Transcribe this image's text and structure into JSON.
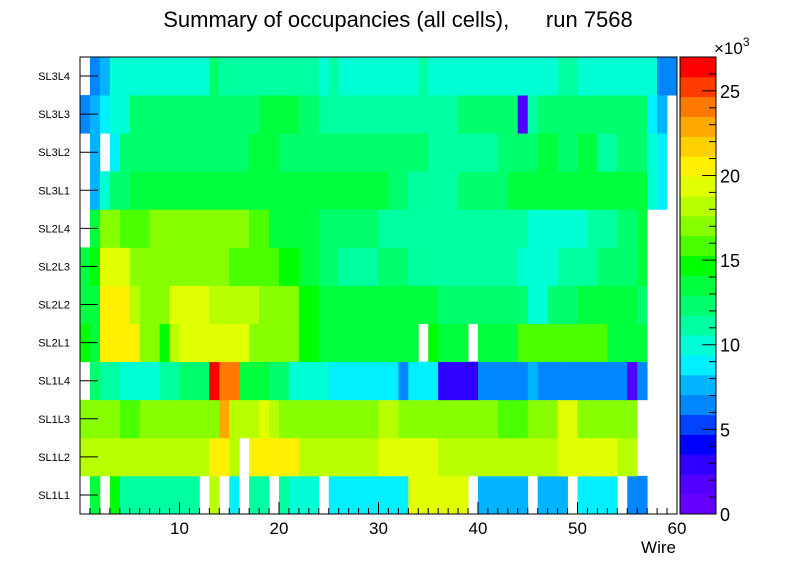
{
  "chart_data": {
    "type": "heatmap",
    "title": "Summary of occupancies (all cells),      run 7568",
    "xlabel": "Wire",
    "ylabel": "",
    "xlim": [
      0,
      60
    ],
    "x_ticks": [
      10,
      20,
      30,
      40,
      50,
      60
    ],
    "layers": [
      "SL1L1",
      "SL1L2",
      "SL1L3",
      "SL1L4",
      "SL2L1",
      "SL2L2",
      "SL2L3",
      "SL2L4",
      "SL3L1",
      "SL3L2",
      "SL3L3",
      "SL3L4"
    ],
    "colorbar": {
      "min": 0,
      "max": 27,
      "multiplier_label": "×10",
      "exponent": "3",
      "ticks": [
        0,
        5,
        10,
        15,
        20,
        25
      ],
      "palette": [
        "#6600ff",
        "#5200ff",
        "#2f00ff",
        "#0000ff",
        "#0042ff",
        "#0087ff",
        "#00b4ff",
        "#00f0ff",
        "#00ffd5",
        "#00ffa0",
        "#00ff6d",
        "#00ff3c",
        "#00ff00",
        "#49ff00",
        "#88ff00",
        "#b8ff00",
        "#e2ff00",
        "#ffef00",
        "#ffd000",
        "#ffa900",
        "#ff7800",
        "#ff3c00",
        "#ff0000"
      ]
    },
    "series": [
      {
        "name": "SL1L1",
        "segments": [
          [
            1,
            2,
            14
          ],
          [
            3,
            4,
            15
          ],
          [
            4,
            12,
            11
          ],
          [
            13,
            14,
            18
          ],
          [
            15,
            16,
            8.5
          ],
          [
            17,
            19,
            11
          ],
          [
            20,
            21,
            11
          ],
          [
            21,
            24,
            9.5
          ],
          [
            25,
            33,
            9
          ],
          [
            33,
            39,
            19
          ],
          [
            40,
            41,
            8
          ],
          [
            41,
            45,
            8
          ],
          [
            46,
            49,
            8
          ],
          [
            50,
            54,
            8.5
          ],
          [
            55,
            56,
            7
          ],
          [
            56,
            57,
            6.5
          ]
        ]
      },
      {
        "name": "SL1L2",
        "segments": [
          [
            0,
            13,
            18
          ],
          [
            13,
            15,
            20
          ],
          [
            15,
            16,
            18
          ],
          [
            17,
            22,
            20
          ],
          [
            22,
            30,
            18
          ],
          [
            30,
            36,
            19
          ],
          [
            36,
            56,
            18
          ],
          [
            48,
            54,
            19.5
          ]
        ]
      },
      {
        "name": "SL1L3",
        "segments": [
          [
            0,
            4,
            17
          ],
          [
            4,
            6,
            16
          ],
          [
            6,
            14,
            17
          ],
          [
            14,
            15,
            23
          ],
          [
            15,
            18,
            18
          ],
          [
            18,
            19,
            19
          ],
          [
            19,
            20,
            18
          ],
          [
            20,
            30,
            17.5
          ],
          [
            30,
            32,
            18.5
          ],
          [
            32,
            42,
            17
          ],
          [
            42,
            45,
            16
          ],
          [
            45,
            48,
            17
          ],
          [
            48,
            50,
            19
          ],
          [
            50,
            56,
            17
          ]
        ]
      },
      {
        "name": "SL1L4",
        "segments": [
          [
            1,
            2,
            12
          ],
          [
            2,
            4,
            11
          ],
          [
            4,
            8,
            10
          ],
          [
            8,
            10,
            11
          ],
          [
            10,
            13,
            12
          ],
          [
            13,
            14,
            27
          ],
          [
            14,
            16,
            24
          ],
          [
            16,
            19,
            13
          ],
          [
            19,
            21,
            12
          ],
          [
            21,
            25,
            10
          ],
          [
            25,
            32,
            9
          ],
          [
            32,
            33,
            7
          ],
          [
            33,
            35,
            9
          ],
          [
            35,
            36,
            9
          ],
          [
            36,
            40,
            3
          ],
          [
            40,
            45,
            7
          ],
          [
            45,
            46,
            8
          ],
          [
            46,
            47,
            6
          ],
          [
            47,
            49,
            7
          ],
          [
            49,
            53,
            6
          ],
          [
            53,
            54,
            7
          ],
          [
            54,
            55,
            6
          ],
          [
            55,
            56,
            2
          ],
          [
            56,
            57,
            6
          ]
        ]
      },
      {
        "name": "SL2L1",
        "segments": [
          [
            0,
            1,
            15
          ],
          [
            1,
            2,
            13
          ],
          [
            2,
            6,
            21
          ],
          [
            6,
            8,
            17
          ],
          [
            8,
            9,
            15
          ],
          [
            9,
            10,
            18
          ],
          [
            10,
            17,
            19
          ],
          [
            17,
            22,
            17
          ],
          [
            22,
            24,
            15
          ],
          [
            24,
            33,
            13
          ],
          [
            33,
            34,
            13
          ],
          [
            35,
            36,
            15
          ],
          [
            36,
            39,
            14
          ],
          [
            40,
            44,
            13
          ],
          [
            44,
            53,
            16
          ],
          [
            53,
            56,
            14
          ],
          [
            56,
            57,
            13
          ]
        ]
      },
      {
        "name": "SL2L2",
        "segments": [
          [
            0,
            1,
            13
          ],
          [
            1,
            2,
            14
          ],
          [
            2,
            3,
            20
          ],
          [
            3,
            5,
            21
          ],
          [
            5,
            6,
            18
          ],
          [
            6,
            9,
            17
          ],
          [
            9,
            13,
            19
          ],
          [
            13,
            18,
            18
          ],
          [
            18,
            22,
            17
          ],
          [
            22,
            24,
            15
          ],
          [
            24,
            36,
            13
          ],
          [
            36,
            38,
            12
          ],
          [
            38,
            45,
            12
          ],
          [
            45,
            47,
            10
          ],
          [
            47,
            50,
            12
          ],
          [
            50,
            56,
            13
          ],
          [
            56,
            57,
            12
          ]
        ]
      },
      {
        "name": "SL2L3",
        "segments": [
          [
            0,
            1,
            14
          ],
          [
            1,
            2,
            15
          ],
          [
            2,
            5,
            19
          ],
          [
            5,
            9,
            17
          ],
          [
            9,
            15,
            17.5
          ],
          [
            15,
            20,
            16
          ],
          [
            20,
            22,
            15
          ],
          [
            22,
            24,
            13
          ],
          [
            24,
            26,
            12
          ],
          [
            26,
            30,
            11
          ],
          [
            30,
            33,
            12
          ],
          [
            33,
            44,
            11
          ],
          [
            44,
            48,
            10
          ],
          [
            48,
            52,
            11
          ],
          [
            52,
            56,
            12
          ],
          [
            56,
            57,
            13
          ]
        ]
      },
      {
        "name": "SL2L4",
        "segments": [
          [
            1,
            2,
            14
          ],
          [
            2,
            4,
            17
          ],
          [
            4,
            7,
            16
          ],
          [
            7,
            11,
            17
          ],
          [
            11,
            17,
            17.5
          ],
          [
            17,
            19,
            16
          ],
          [
            19,
            21,
            14
          ],
          [
            21,
            24,
            13
          ],
          [
            24,
            30,
            12
          ],
          [
            30,
            31,
            11
          ],
          [
            31,
            45,
            11
          ],
          [
            45,
            51,
            10
          ],
          [
            51,
            54,
            11
          ],
          [
            54,
            56,
            12
          ],
          [
            56,
            57,
            13
          ]
        ]
      },
      {
        "name": "SL3L1",
        "segments": [
          [
            1,
            2,
            8
          ],
          [
            2,
            3,
            10
          ],
          [
            3,
            5,
            12
          ],
          [
            5,
            15,
            13
          ],
          [
            15,
            21,
            13
          ],
          [
            21,
            31,
            13
          ],
          [
            31,
            33,
            12
          ],
          [
            33,
            35,
            11
          ],
          [
            35,
            38,
            11.5
          ],
          [
            38,
            43,
            12
          ],
          [
            43,
            45,
            13
          ],
          [
            45,
            56,
            14
          ],
          [
            56,
            57,
            13
          ],
          [
            57,
            58,
            10
          ],
          [
            58,
            59,
            9
          ]
        ]
      },
      {
        "name": "SL3L2",
        "segments": [
          [
            1,
            2,
            8
          ],
          [
            3,
            4,
            9
          ],
          [
            4,
            17,
            12
          ],
          [
            17,
            20,
            13
          ],
          [
            20,
            30,
            12
          ],
          [
            30,
            35,
            12
          ],
          [
            35,
            42,
            11.5
          ],
          [
            42,
            46,
            12
          ],
          [
            46,
            48,
            13
          ],
          [
            48,
            50,
            12
          ],
          [
            50,
            52,
            13
          ],
          [
            52,
            54,
            11
          ],
          [
            54,
            57,
            12
          ],
          [
            57,
            58,
            10
          ],
          [
            58,
            59,
            9
          ]
        ]
      },
      {
        "name": "SL3L3",
        "segments": [
          [
            0,
            1,
            7
          ],
          [
            1,
            2,
            8
          ],
          [
            2,
            3,
            9
          ],
          [
            3,
            5,
            10
          ],
          [
            5,
            18,
            12
          ],
          [
            18,
            22,
            13
          ],
          [
            22,
            24,
            12
          ],
          [
            24,
            31,
            11
          ],
          [
            31,
            38,
            11.5
          ],
          [
            38,
            44,
            12
          ],
          [
            44,
            45,
            2
          ],
          [
            45,
            46,
            11
          ],
          [
            46,
            50,
            12
          ],
          [
            50,
            57,
            12
          ],
          [
            57,
            58,
            9
          ],
          [
            58,
            59,
            8
          ]
        ]
      },
      {
        "name": "SL3L4",
        "segments": [
          [
            1,
            2,
            6
          ],
          [
            2,
            3,
            8
          ],
          [
            3,
            13,
            10.5
          ],
          [
            13,
            14,
            12
          ],
          [
            14,
            16,
            11
          ],
          [
            16,
            24,
            11.5
          ],
          [
            24,
            25,
            10
          ],
          [
            25,
            26,
            11
          ],
          [
            26,
            34,
            10.5
          ],
          [
            34,
            35,
            11
          ],
          [
            35,
            48,
            10.5
          ],
          [
            48,
            50,
            11
          ],
          [
            50,
            57,
            10.5
          ],
          [
            57,
            58,
            10
          ],
          [
            58,
            59,
            7
          ],
          [
            59,
            60,
            6
          ]
        ]
      }
    ]
  }
}
